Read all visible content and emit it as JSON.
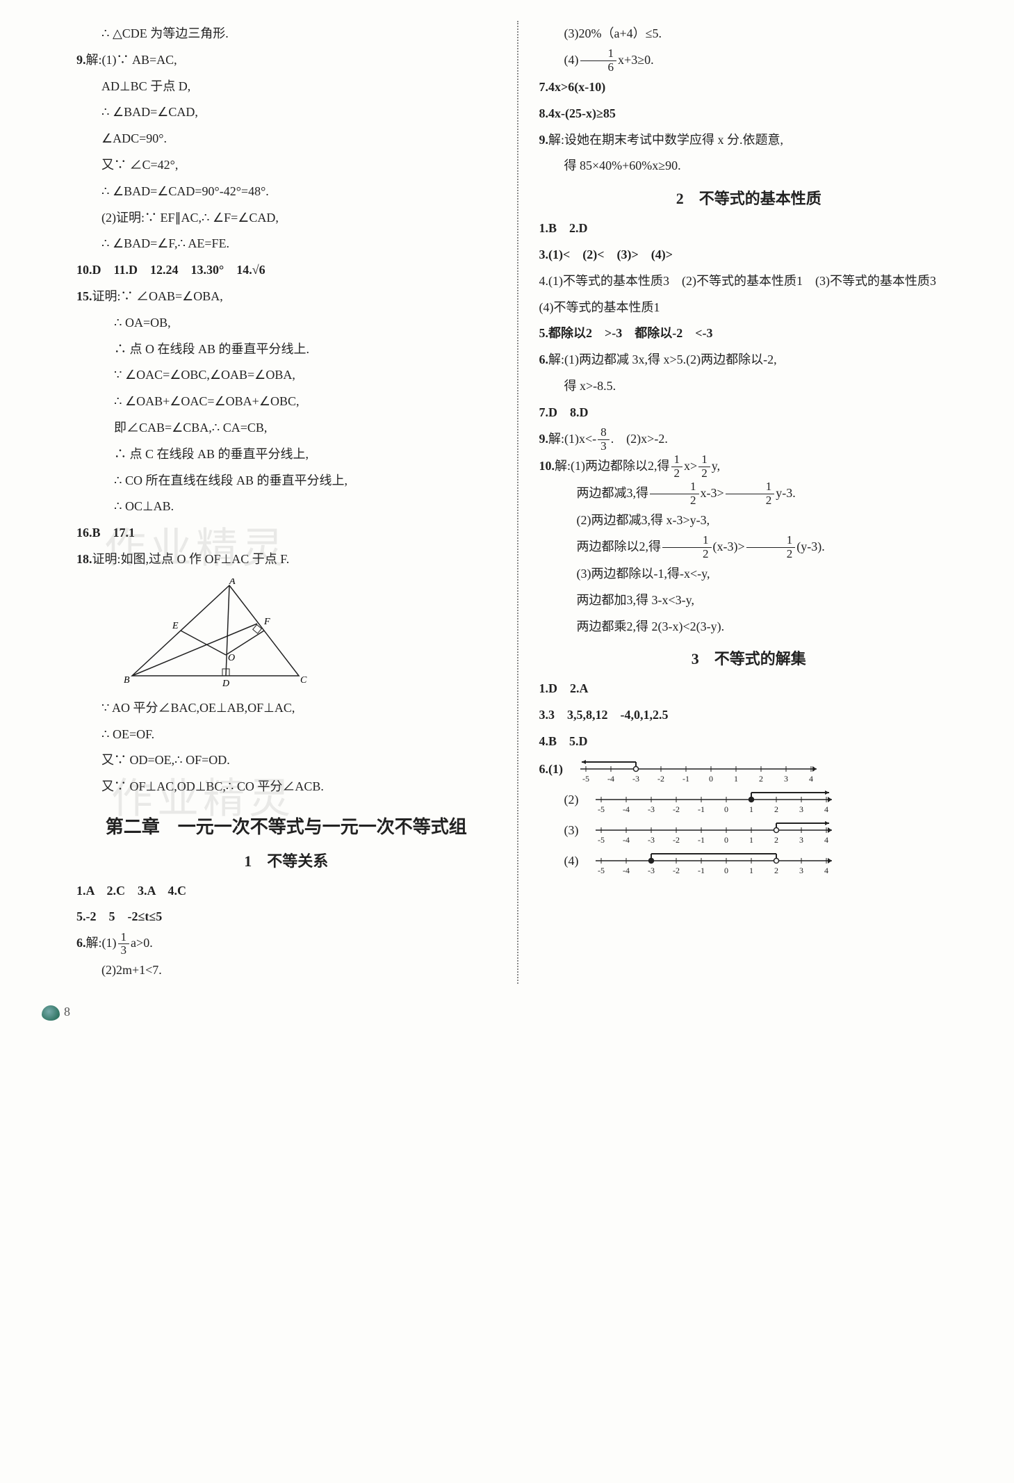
{
  "left": {
    "l1": "∴ △CDE 为等边三角形.",
    "q9": "9.",
    "q9a": "解:(1)∵ AB=AC,",
    "l3": "AD⊥BC 于点 D,",
    "l4": "∴ ∠BAD=∠CAD,",
    "l5": "∠ADC=90°.",
    "l6": "又∵ ∠C=42°,",
    "l7": "∴ ∠BAD=∠CAD=90°-42°=48°.",
    "l8": "(2)证明:∵ EF∥AC,∴ ∠F=∠CAD,",
    "l9": "∴ ∠BAD=∠F,∴ AE=FE.",
    "row10": "10.D　11.D　12.24　13.30°　14.√6",
    "q15": "15.",
    "q15a": "证明:∵ ∠OAB=∠OBA,",
    "l12": "∴ OA=OB,",
    "l13": "∴ 点 O 在线段 AB 的垂直平分线上.",
    "l14": "∵ ∠OAC=∠OBC,∠OAB=∠OBA,",
    "l15": "∴ ∠OAB+∠OAC=∠OBA+∠OBC,",
    "l16": "即∠CAB=∠CBA,∴ CA=CB,",
    "l17": "∴ 点 C 在线段 AB 的垂直平分线上,",
    "l18": "∴ CO 所在直线在线段 AB 的垂直平分线上,",
    "l19": "∴ OC⊥AB.",
    "row16": "16.B　17.1",
    "q18": "18.",
    "q18a": "证明:如图,过点 O 作 OF⊥AC 于点 F.",
    "l21": "∵ AO 平分∠BAC,OE⊥AB,OF⊥AC,",
    "l22": "∴ OE=OF.",
    "l23": "又∵ OD=OE,∴ OF=OD.",
    "l24": "又∵ OF⊥AC,OD⊥BC,∴ CO 平分∠ACB.",
    "chapter": "第二章　一元一次不等式与一元一次不等式组",
    "section1": "1　不等关系",
    "row1": "1.A　2.C　3.A　4.C",
    "row5": "5.-2　5　-2≤t≤5",
    "q6": "6.",
    "q6pre": "解:(1)",
    "q6post": "a>0.",
    "q6frac_n": "1",
    "q6frac_d": "3",
    "l27": "(2)2m+1<7.",
    "diagram": {
      "A": "A",
      "B": "B",
      "C": "C",
      "D": "D",
      "E": "E",
      "F": "F",
      "O": "O"
    }
  },
  "right": {
    "l1": "(3)20%（a+4）≤5.",
    "q4pre": "(4)",
    "q4frac_n": "1",
    "q4frac_d": "6",
    "q4post": "x+3≥0.",
    "l3": "7.4x>6(x-10)",
    "l4": "8.4x-(25-x)≥85",
    "q9": "9.",
    "q9a": "解:设她在期末考试中数学应得 x 分.依题意,",
    "l6": "得 85×40%+60%x≥90.",
    "section2": "2　不等式的基本性质",
    "row12": "1.B　2.D",
    "row3": "3.(1)<　(2)<　(3)>　(4)>",
    "l8": "4.(1)不等式的基本性质3　(2)不等式的基本性质1　(3)不等式的基本性质3　(4)不等式的基本性质1",
    "l9": "5.都除以2　>-3　都除以-2　<-3",
    "q6": "6.",
    "q6a": "解:(1)两边都减 3x,得 x>5.(2)两边都除以-2,",
    "l11": "得 x>-8.5.",
    "row78": "7.D　8.D",
    "q9b": "9.",
    "q9bpre": "解:(1)x<-",
    "q9bfrac_n": "8",
    "q9bfrac_d": "3",
    "q9bpost": ".　(2)x>-2.",
    "q10": "10.",
    "q10pre": "解:(1)两边都除以2,得",
    "q10f1n": "1",
    "q10f1d": "2",
    "q10mid": "x>",
    "q10f2n": "1",
    "q10f2d": "2",
    "q10post": "y,",
    "l14pre": "两边都减3,得",
    "l14mid": "x-3>",
    "l14post": "y-3.",
    "l15": "(2)两边都减3,得 x-3>y-3,",
    "l16pre": "两边都除以2,得",
    "l16mid": "(x-3)>",
    "l16post": "(y-3).",
    "l17": "(3)两边都除以-1,得-x<-y,",
    "l18": "两边都加3,得 3-x<3-y,",
    "l19": "两边都乘2,得 2(3-x)<2(3-y).",
    "section3": "3　不等式的解集",
    "rowA": "1.D　2.A",
    "rowB": "3.3　3,5,8,12　-4,0,1,2.5",
    "rowC": "4.B　5.D",
    "nl_label6": "6.(1)",
    "nl_label2": "(2)",
    "nl_label3": "(3)",
    "nl_label4": "(4)",
    "numberline": {
      "ticks": [
        "-5",
        "-4",
        "-3",
        "-2",
        "-1",
        "0",
        "1",
        "2",
        "3",
        "4"
      ],
      "sets": [
        {
          "type": "ray_left",
          "from": -3,
          "open": true
        },
        {
          "type": "ray_right",
          "from": 1,
          "open": false
        },
        {
          "type": "ray_right",
          "from": 2,
          "open": true
        },
        {
          "type": "segment",
          "from": -3,
          "to": 2,
          "open_left": false,
          "open_right": true
        }
      ],
      "color": "#222"
    }
  },
  "page_number": "8",
  "watermark_text": "作业精灵"
}
